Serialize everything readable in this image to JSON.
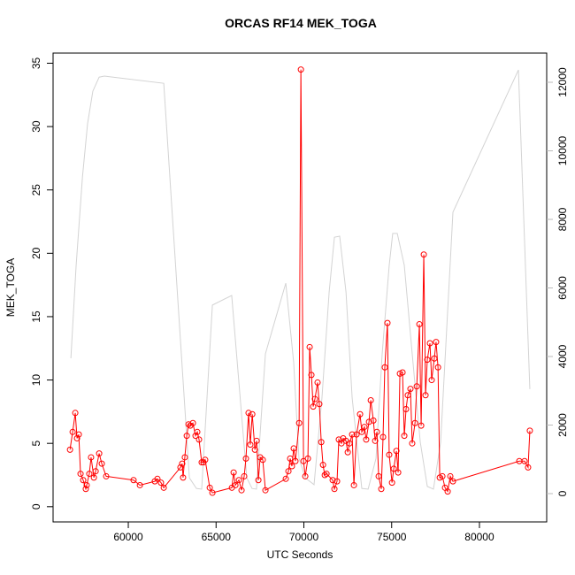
{
  "chart_data": {
    "type": "line",
    "title": "ORCAS RF14 MEK_TOGA",
    "x_label": "UTC Seconds",
    "y_label": "MEK_TOGA",
    "xlim": [
      55716,
      83830
    ],
    "xticks": [
      60000,
      65000,
      70000,
      75000,
      80000
    ],
    "ylim": [
      -1.2,
      35.8
    ],
    "yticks": [
      0,
      5,
      10,
      15,
      20,
      25,
      30,
      35
    ],
    "y2lim": [
      -826,
      12852
    ],
    "y2ticks": [
      0,
      2000,
      4000,
      6000,
      8000,
      10000,
      12000
    ],
    "series": [
      {
        "color": "#d3d3d3",
        "axis": "y2",
        "x": [
          56730,
          57030,
          57390,
          57680,
          57980,
          58340,
          58640,
          62020,
          63480,
          63880,
          64180,
          64790,
          65890,
          66750,
          67050,
          67300,
          67810,
          68970,
          69420,
          69720,
          70080,
          70580,
          71030,
          71440,
          71740,
          72040,
          72400,
          72750,
          73300,
          73660,
          74110,
          74460,
          74860,
          75060,
          75320,
          75720,
          76170,
          76630,
          77030,
          77380,
          77790,
          78490,
          82220,
          82870
        ],
        "values": [
          3950,
          6660,
          9240,
          10790,
          11740,
          12150,
          12180,
          11970,
          460,
          150,
          130,
          5500,
          5780,
          460,
          150,
          130,
          4080,
          6140,
          3820,
          1030,
          460,
          260,
          2790,
          5880,
          7480,
          7510,
          5880,
          2790,
          150,
          130,
          1030,
          4080,
          6660,
          7590,
          7590,
          6660,
          4080,
          1500,
          210,
          130,
          1500,
          8210,
          12360,
          3050
        ]
      },
      {
        "color": "#ff0000",
        "x": [
          56680,
          56830,
          56980,
          57080,
          57180,
          57280,
          57430,
          57580,
          57630,
          57780,
          57880,
          58040,
          58140,
          58340,
          58490,
          58740,
          60300,
          60660,
          61510,
          61660,
          61860,
          62020,
          62970,
          63070,
          63120,
          63220,
          63330,
          63430,
          63530,
          63680,
          63830,
          63930,
          64030,
          64180,
          64280,
          64380,
          64640,
          64790,
          65900,
          66000,
          66100,
          66300,
          66450,
          66600,
          66700,
          66850,
          66950,
          67060,
          67210,
          67310,
          67410,
          67510,
          67660,
          67810,
          68970,
          69120,
          69220,
          69320,
          69420,
          69520,
          69730,
          69830,
          69980,
          70080,
          70230,
          70330,
          70430,
          70530,
          70630,
          70780,
          70880,
          70990,
          71090,
          71190,
          71290,
          71640,
          71740,
          71890,
          71990,
          72140,
          72240,
          72400,
          72500,
          72600,
          72750,
          72850,
          73000,
          73200,
          73300,
          73450,
          73550,
          73710,
          73810,
          73960,
          74060,
          74160,
          74260,
          74410,
          74510,
          74610,
          74760,
          74860,
          75020,
          75120,
          75270,
          75370,
          75470,
          75620,
          75720,
          75820,
          75920,
          76070,
          76170,
          76330,
          76430,
          76580,
          76680,
          76830,
          76930,
          77030,
          77180,
          77280,
          77430,
          77530,
          77640,
          77740,
          77890,
          78040,
          78190,
          78340,
          78490,
          82270,
          82570,
          82770,
          82870
        ],
        "values": [
          4.5,
          5.9,
          7.4,
          5.4,
          5.7,
          2.6,
          2.1,
          1.4,
          1.7,
          2.6,
          3.9,
          2.3,
          2.8,
          4.2,
          3.4,
          2.4,
          2.1,
          1.7,
          2.0,
          2.2,
          1.9,
          1.5,
          3.1,
          3.4,
          2.3,
          3.9,
          5.6,
          6.5,
          6.4,
          6.6,
          5.6,
          5.9,
          5.3,
          3.5,
          3.5,
          3.7,
          1.5,
          1.1,
          1.5,
          2.7,
          1.7,
          2.1,
          1.3,
          2.4,
          3.8,
          7.4,
          4.9,
          7.3,
          4.5,
          5.2,
          2.1,
          3.9,
          3.7,
          1.3,
          2.2,
          2.8,
          3.8,
          3.2,
          4.6,
          3.6,
          6.6,
          34.5,
          3.6,
          2.4,
          3.8,
          12.6,
          10.4,
          7.9,
          8.5,
          9.8,
          8.1,
          5.1,
          3.3,
          2.5,
          2.6,
          2.1,
          1.4,
          2.0,
          5.3,
          5.0,
          5.4,
          5.2,
          4.3,
          5.0,
          5.7,
          1.7,
          5.7,
          7.3,
          5.9,
          6.3,
          5.3,
          6.7,
          8.4,
          6.8,
          5.2,
          5.9,
          2.4,
          1.4,
          5.5,
          11.0,
          14.5,
          4.1,
          1.9,
          3.0,
          4.4,
          2.7,
          10.5,
          10.6,
          5.6,
          7.7,
          8.8,
          9.3,
          5.0,
          6.6,
          9.5,
          14.4,
          6.4,
          19.9,
          8.8,
          11.6,
          12.9,
          10.0,
          11.7,
          13.0,
          11.0,
          2.3,
          2.4,
          1.5,
          1.2,
          2.4,
          2.0,
          3.6,
          3.6,
          3.1,
          6.0
        ]
      }
    ]
  }
}
